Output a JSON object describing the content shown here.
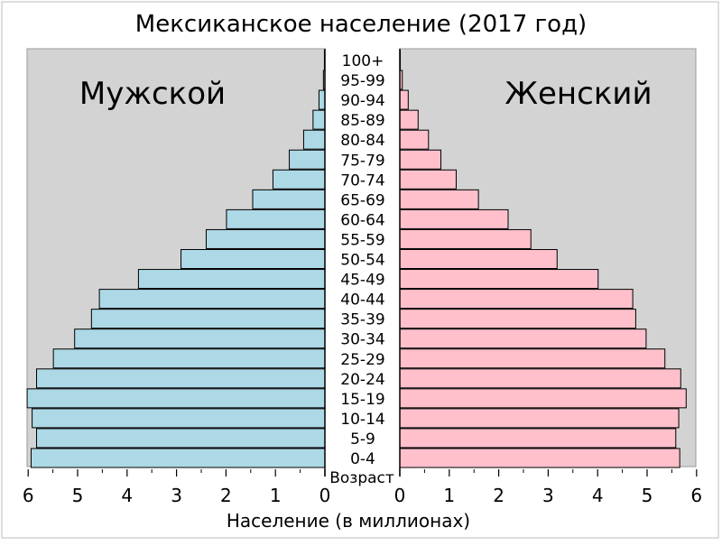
{
  "chart_data": {
    "type": "bar",
    "title": "Мексиканское население (2017 год)",
    "xlabel": "Население (в миллионах)",
    "age_label": "Возраст",
    "xlim": [
      0,
      6
    ],
    "x_ticks": [
      "6",
      "5",
      "4",
      "3",
      "2",
      "1",
      "0",
      "0",
      "1",
      "2",
      "3",
      "4",
      "5",
      "6"
    ],
    "categories": [
      "100+",
      "95-99",
      "90-94",
      "85-89",
      "80-84",
      "75-79",
      "70-74",
      "65-69",
      "60-64",
      "55-59",
      "50-54",
      "45-49",
      "40-44",
      "35-39",
      "30-34",
      "25-29",
      "20-24",
      "15-19",
      "10-14",
      "5-9",
      "0-4"
    ],
    "series": [
      {
        "name": "Мужской",
        "values": [
          0.01,
          0.03,
          0.12,
          0.24,
          0.43,
          0.72,
          1.05,
          1.46,
          1.99,
          2.4,
          2.91,
          3.77,
          4.56,
          4.72,
          5.06,
          5.49,
          5.83,
          6.02,
          5.92,
          5.83,
          5.94
        ]
      },
      {
        "name": "Женский",
        "values": [
          0.01,
          0.05,
          0.17,
          0.37,
          0.58,
          0.83,
          1.14,
          1.59,
          2.19,
          2.65,
          3.18,
          4.01,
          4.71,
          4.77,
          4.98,
          5.36,
          5.68,
          5.79,
          5.64,
          5.58,
          5.66
        ]
      }
    ],
    "colors": {
      "male": "#add8e6",
      "female": "#ffc0cb",
      "panel": "#d3d3d3",
      "stroke": "#000000"
    }
  }
}
